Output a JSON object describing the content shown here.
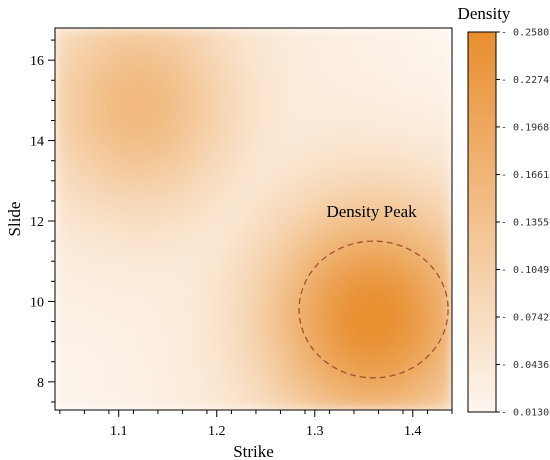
{
  "chart_data": {
    "type": "heatmap",
    "title": "",
    "xlabel": "Strike",
    "ylabel": "Slide",
    "xlim": [
      1.035,
      1.44
    ],
    "ylim": [
      7.3,
      16.8
    ],
    "x_ticks": [
      1.1,
      1.2,
      1.3,
      1.4
    ],
    "x_tick_labels": [
      "1.1",
      "1.2",
      "1.3",
      "1.4"
    ],
    "y_ticks": [
      8,
      10,
      12,
      14,
      16
    ],
    "y_tick_labels": [
      "8",
      "10",
      "12",
      "14",
      "16"
    ],
    "colorbar": {
      "title": "Density",
      "min": 0.013,
      "max": 0.258,
      "tick_values": [
        0.258,
        0.2274,
        0.1968,
        0.1661,
        0.1355,
        0.1049,
        0.07425,
        0.04363,
        0.013
      ],
      "tick_labels": [
        "0.2580",
        "0.2274",
        "0.1968",
        "0.1661",
        "0.1355",
        "0.1049",
        "0.07425",
        "0.04363",
        "0.01300"
      ],
      "color_low": "#fdf6ef",
      "color_high": "#e88e2e"
    },
    "density_peaks": [
      {
        "x": 1.36,
        "y": 9.6,
        "value": 0.258
      },
      {
        "x": 1.12,
        "y": 14.9,
        "value": 0.15
      }
    ],
    "annotation": {
      "text": "Density Peak",
      "circle_center": [
        1.36,
        9.8
      ],
      "circle_radius_x": 0.076,
      "circle_radius_y": 1.7,
      "line_color": "#a0522d",
      "dashed": true
    }
  }
}
